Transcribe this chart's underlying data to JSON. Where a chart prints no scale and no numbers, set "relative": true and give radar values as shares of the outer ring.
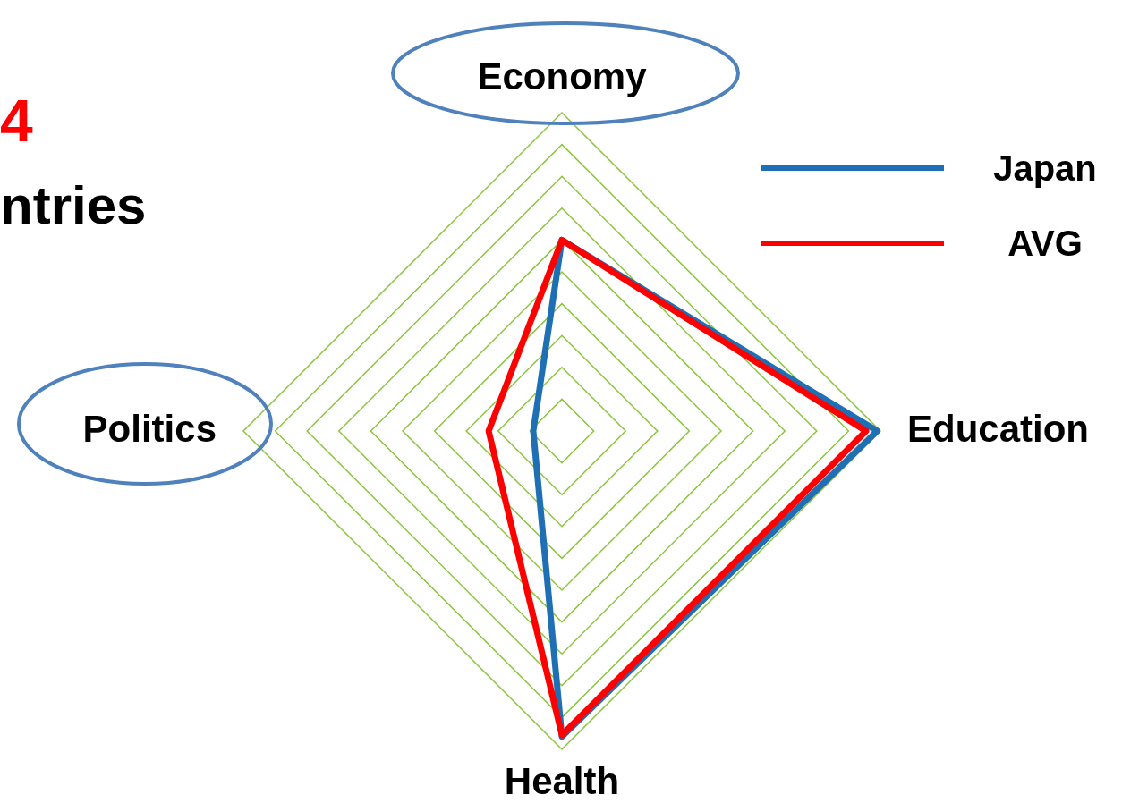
{
  "chart_data": {
    "type": "radar",
    "relative": true,
    "categories": [
      "Economy",
      "Education",
      "Health",
      "Politics"
    ],
    "series": [
      {
        "name": "Japan",
        "color": "#1f6fb5",
        "values": [
          0.6,
          0.99,
          0.96,
          0.09
        ]
      },
      {
        "name": "AVG",
        "color": "#ff0000",
        "values": [
          0.6,
          0.955,
          0.955,
          0.23
        ]
      }
    ],
    "annotations": [
      "4",
      "ntries"
    ],
    "grid": true,
    "legend": "top right"
  }
}
